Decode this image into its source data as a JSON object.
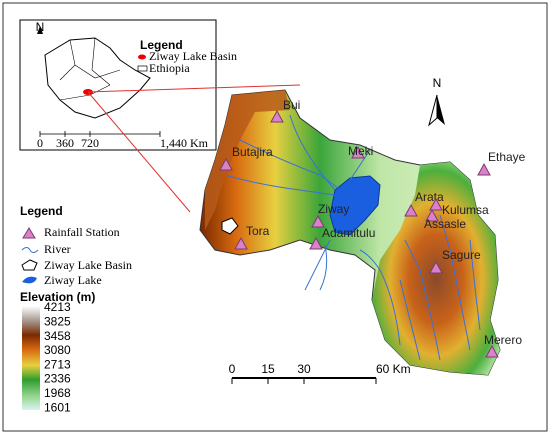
{
  "inset": {
    "north": "N",
    "legend_title": "Legend",
    "items": [
      "Ziway Lake Basin",
      "Ethiopia"
    ],
    "scale": [
      "0",
      "360",
      "720",
      "1,440 Km"
    ]
  },
  "north": "N",
  "stations": [
    "Bui",
    "Butajira",
    "Meki",
    "Ethaye",
    "Arata",
    "Kulumsa",
    "Assasle",
    "Ziway",
    "Adamitulu",
    "Tora",
    "Sagure",
    "Merero"
  ],
  "legend": {
    "title": "Legend",
    "items": [
      "Rainfall Station",
      "River",
      "Ziway Lake Basin",
      "Ziway Lake"
    ]
  },
  "elevation": {
    "title": "Elevation (m)",
    "labels": [
      4213,
      3825,
      3458,
      3080,
      2713,
      2336,
      1968,
      1601
    ]
  },
  "scale": {
    "labels": [
      "0",
      "15",
      "30",
      "60 Km"
    ]
  }
}
